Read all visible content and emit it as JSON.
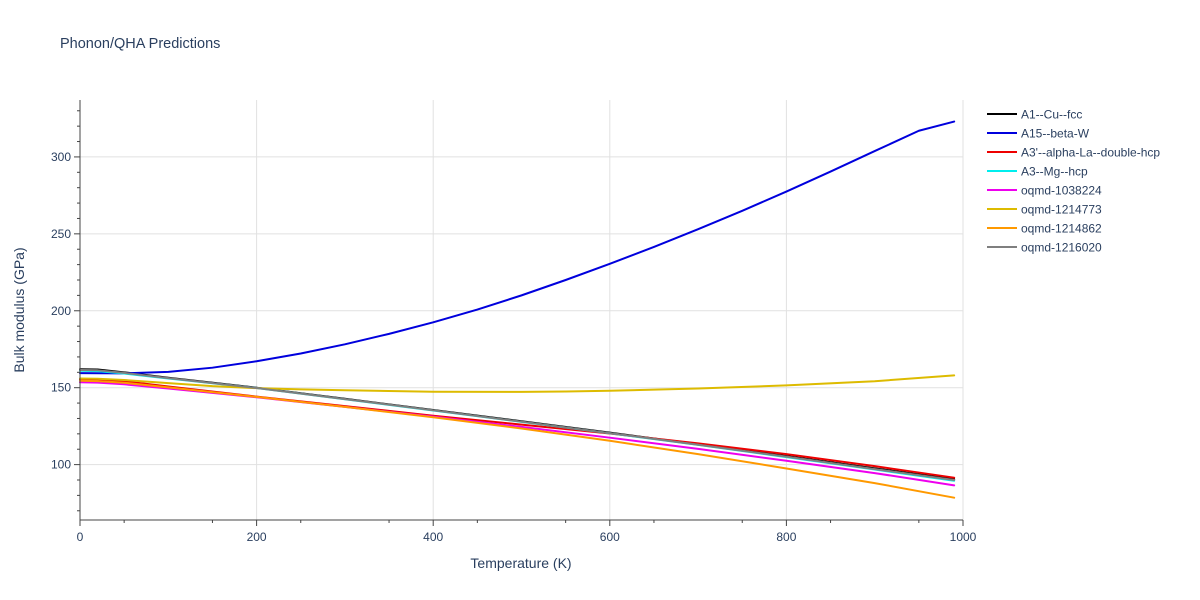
{
  "chart_data": {
    "type": "line",
    "title": "Phonon/QHA Predictions",
    "xlabel": "Temperature (K)",
    "ylabel": "Bulk modulus (GPa)",
    "xlim": [
      0,
      1000
    ],
    "ylim": [
      64,
      337
    ],
    "xticks": [
      0,
      200,
      400,
      600,
      800,
      1000
    ],
    "yticks": [
      100,
      150,
      200,
      250,
      300
    ],
    "grid": true,
    "legend_position": "right",
    "series": [
      {
        "name": "A1--Cu--fcc",
        "color": "#000000",
        "x": [
          0,
          20,
          50,
          100,
          200,
          300,
          400,
          500,
          600,
          700,
          800,
          900,
          990
        ],
        "y": [
          162,
          161.8,
          160,
          156.5,
          150,
          142.8,
          135.5,
          128.2,
          120.8,
          113.2,
          105.6,
          97.6,
          90.5
        ]
      },
      {
        "name": "A15--beta-W",
        "color": "#0000dd",
        "x": [
          0,
          50,
          100,
          150,
          200,
          250,
          300,
          350,
          400,
          450,
          500,
          550,
          600,
          650,
          700,
          750,
          800,
          850,
          900,
          950,
          990
        ],
        "y": [
          159.5,
          159.3,
          160.3,
          163,
          167.2,
          172.2,
          178.2,
          185,
          192.5,
          200.8,
          210,
          220,
          230.5,
          241.5,
          253,
          265,
          277.5,
          290.5,
          303.8,
          317,
          323
        ]
      },
      {
        "name": "A3'--alpha-La--double-hcp",
        "color": "#ee0000",
        "x": [
          0,
          20,
          50,
          100,
          200,
          300,
          400,
          500,
          600,
          700,
          800,
          900,
          990
        ],
        "y": [
          155.5,
          155.4,
          154.2,
          150.8,
          144.2,
          138,
          131.8,
          126,
          120.2,
          113.8,
          106.8,
          99,
          91.5
        ]
      },
      {
        "name": "A3--Mg--hcp",
        "color": "#00eeee",
        "x": [
          0,
          20,
          50,
          100,
          200,
          300,
          400,
          500,
          600,
          700,
          800,
          900,
          990
        ],
        "y": [
          161,
          160.8,
          159.2,
          156,
          149.8,
          142.5,
          135.2,
          127.8,
          120.4,
          112.8,
          104.9,
          96.8,
          89.5
        ]
      },
      {
        "name": "oqmd-1038224",
        "color": "#ee00ee",
        "x": [
          0,
          20,
          50,
          100,
          200,
          300,
          400,
          500,
          600,
          700,
          800,
          900,
          990
        ],
        "y": [
          153.5,
          153.3,
          152.2,
          149.5,
          143.8,
          137.5,
          131.2,
          124.5,
          117.5,
          110.2,
          102.5,
          94.5,
          86.5
        ]
      },
      {
        "name": "oqmd-1214773",
        "color": "#ddbb00",
        "x": [
          0,
          20,
          50,
          100,
          150,
          200,
          250,
          300,
          400,
          500,
          550,
          600,
          700,
          800,
          900,
          990
        ],
        "y": [
          156,
          155.8,
          155,
          153,
          151,
          149.7,
          148.9,
          148.3,
          147.4,
          147.3,
          147.5,
          148,
          149.5,
          151.5,
          154.2,
          158
        ]
      },
      {
        "name": "oqmd-1214862",
        "color": "#ff9900",
        "x": [
          0,
          20,
          50,
          100,
          200,
          300,
          400,
          500,
          600,
          700,
          800,
          900,
          990
        ],
        "y": [
          154.5,
          154.3,
          153.2,
          150.2,
          144,
          137.5,
          130.8,
          123.5,
          115.5,
          106.8,
          97.5,
          88,
          78.5
        ]
      },
      {
        "name": "oqmd-1216020",
        "color": "#7f7f7f",
        "x": [
          0,
          20,
          50,
          100,
          200,
          300,
          400,
          500,
          600,
          700,
          800,
          900,
          990
        ],
        "y": [
          161.5,
          161.3,
          159.6,
          156.2,
          149.8,
          142.6,
          135.3,
          127.9,
          120.5,
          112.9,
          105.2,
          97.1,
          90
        ]
      }
    ]
  }
}
